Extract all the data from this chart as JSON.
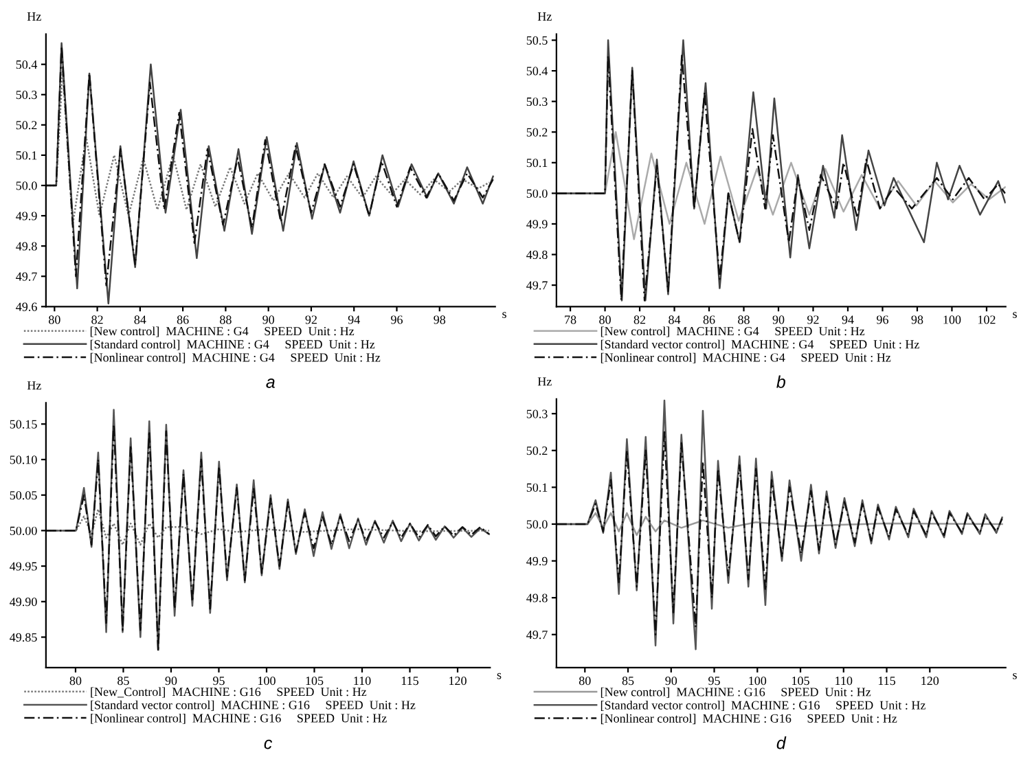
{
  "chart_data": [
    {
      "type": "line",
      "title": "a",
      "ylabel": "Hz",
      "xlabel": "s",
      "xlim": [
        79.6,
        100.6
      ],
      "ylim": [
        49.6,
        50.5
      ],
      "xticks": [
        80,
        82,
        84,
        86,
        88,
        90,
        92,
        94,
        96,
        98
      ],
      "yticks": [
        49.6,
        49.7,
        49.8,
        49.9,
        {
          "value": 50.0,
          "label": "50.0"
        },
        50.1,
        50.2,
        50.3,
        50.4
      ],
      "legend": "bottom",
      "grid": false,
      "series": [
        {
          "name": "[New control]  MACHINE : G4     SPEED  Unit : Hz",
          "color": "#777777",
          "line_style": "dotted",
          "x": [
            79.6,
            80.08,
            80.38,
            80.85,
            81.48,
            82.1,
            82.79,
            83.46,
            84.15,
            84.81,
            85.54,
            86.17,
            86.83,
            87.52,
            88.21,
            88.88,
            89.5,
            90.23,
            90.96,
            91.69,
            92.31,
            93.04,
            93.67,
            94.4,
            95.02,
            95.75,
            96.38,
            97.1,
            97.73,
            98.46,
            99.08,
            99.81,
            100.33
          ],
          "values": [
            50.0,
            50.0,
            50.38,
            49.87,
            50.16,
            49.9,
            50.1,
            49.9,
            50.09,
            49.92,
            50.1,
            49.92,
            50.07,
            49.93,
            50.06,
            49.94,
            50.04,
            49.95,
            50.04,
            49.96,
            50.04,
            49.96,
            50.03,
            49.96,
            50.03,
            49.97,
            50.02,
            49.97,
            50.02,
            49.98,
            50.02,
            49.99,
            50.01
          ]
        },
        {
          "name": "[Standard control]  MACHINE : G4     SPEED  Unit : Hz",
          "color": "#444444",
          "line_style": "solid",
          "x": [
            79.6,
            80.08,
            80.33,
            81.06,
            81.63,
            82.52,
            83.08,
            83.77,
            84.5,
            85.19,
            85.9,
            86.65,
            87.21,
            87.94,
            88.6,
            89.23,
            89.92,
            90.69,
            91.33,
            92.04,
            92.63,
            93.35,
            93.98,
            94.71,
            95.33,
            96.06,
            96.69,
            97.42,
            97.94,
            98.67,
            99.29,
            100.02,
            100.5
          ],
          "values": [
            50.0,
            50.0,
            50.47,
            49.66,
            50.37,
            49.61,
            50.13,
            49.73,
            50.4,
            49.91,
            50.25,
            49.76,
            50.13,
            49.85,
            50.12,
            49.84,
            50.16,
            49.85,
            50.14,
            49.89,
            50.07,
            49.91,
            50.08,
            49.9,
            50.1,
            49.93,
            50.07,
            49.96,
            50.04,
            49.94,
            50.06,
            49.94,
            50.03
          ]
        },
        {
          "name": "[Nonlinear control]  MACHINE : G4     SPEED  Unit : Hz",
          "color": "#111111",
          "line_style": "dashed",
          "x": [
            79.6,
            80.08,
            80.33,
            81.0,
            81.63,
            82.42,
            83.08,
            83.77,
            84.46,
            85.13,
            85.83,
            86.54,
            87.15,
            87.88,
            88.56,
            89.23,
            89.85,
            90.58,
            91.27,
            92.0,
            92.63,
            93.35,
            93.98,
            94.71,
            95.29,
            96.0,
            96.63,
            97.38,
            97.94,
            98.67,
            99.29,
            100.02,
            100.5
          ],
          "values": [
            50.0,
            50.0,
            50.46,
            49.7,
            50.37,
            49.67,
            50.12,
            49.74,
            50.34,
            49.92,
            50.24,
            49.81,
            50.12,
            49.87,
            50.09,
            49.86,
            50.15,
            49.88,
            50.13,
            49.91,
            50.07,
            49.93,
            50.07,
            49.9,
            50.08,
            49.93,
            50.06,
            49.96,
            50.04,
            49.95,
            50.04,
            49.96,
            50.02
          ]
        }
      ]
    },
    {
      "type": "line",
      "title": "b",
      "ylabel": "Hz",
      "xlabel": "s",
      "xlim": [
        77.2,
        103.1
      ],
      "ylim": [
        49.63,
        50.52
      ],
      "xticks": [
        78,
        80,
        82,
        84,
        86,
        88,
        90,
        92,
        94,
        96,
        98,
        100,
        102
      ],
      "yticks": [
        49.7,
        49.8,
        49.9,
        {
          "value": 50.0,
          "label": "50.0"
        },
        50.1,
        50.2,
        50.3,
        50.4,
        50.5
      ],
      "legend": "bottom",
      "grid": false,
      "series": [
        {
          "name": "[New control]  MACHINE : G4     SPEED  Unit : Hz",
          "color": "#aaaaaa",
          "line_style": "solid",
          "x": [
            77.2,
            80.0,
            80.62,
            81.67,
            82.67,
            83.72,
            84.69,
            85.74,
            86.66,
            87.71,
            88.76,
            89.68,
            90.73,
            91.78,
            92.7,
            93.75,
            94.8,
            95.85,
            96.9,
            97.95,
            99.0,
            100.05,
            101.1,
            102.15,
            103.07
          ],
          "values": [
            50.0,
            50.0,
            50.2,
            49.85,
            50.13,
            49.9,
            50.1,
            49.9,
            50.12,
            49.91,
            50.08,
            49.93,
            50.1,
            49.93,
            50.08,
            49.94,
            50.06,
            49.95,
            50.04,
            49.96,
            50.04,
            49.97,
            50.03,
            49.98,
            50.02
          ]
        },
        {
          "name": "[Standard vector control]  MACHINE : G4     SPEED  Unit : Hz",
          "color": "#444444",
          "line_style": "solid",
          "x": [
            77.2,
            80.0,
            80.18,
            80.97,
            81.57,
            82.33,
            82.99,
            83.64,
            84.51,
            85.14,
            85.8,
            86.61,
            87.11,
            87.76,
            88.55,
            89.29,
            89.76,
            90.68,
            91.12,
            91.78,
            92.57,
            93.22,
            93.67,
            94.48,
            95.19,
            96.11,
            96.64,
            98.39,
            99.13,
            99.78,
            100.44,
            101.62,
            102.67,
            103.07
          ],
          "values": [
            50.0,
            50.0,
            50.5,
            49.65,
            50.41,
            49.65,
            50.11,
            49.67,
            50.5,
            49.95,
            50.36,
            49.69,
            50.0,
            49.84,
            50.33,
            49.95,
            50.31,
            49.79,
            50.06,
            49.82,
            50.09,
            49.92,
            50.19,
            49.88,
            50.14,
            49.96,
            50.05,
            49.84,
            50.1,
            49.98,
            50.09,
            49.93,
            50.04,
            49.97
          ]
        },
        {
          "name": "[Nonlinear control]  MACHINE : G4     SPEED  Unit : Hz",
          "color": "#111111",
          "line_style": "dashed",
          "x": [
            77.2,
            80.0,
            80.18,
            80.94,
            81.57,
            82.28,
            82.99,
            83.64,
            84.43,
            85.14,
            85.74,
            86.61,
            87.11,
            87.76,
            88.5,
            89.23,
            89.68,
            90.6,
            91.12,
            91.78,
            92.44,
            93.35,
            93.75,
            94.54,
            95.06,
            95.85,
            96.64,
            97.69,
            99.13,
            100.05,
            100.97,
            101.88,
            102.67,
            103.07
          ],
          "values": [
            50.0,
            50.0,
            50.45,
            49.65,
            50.4,
            49.65,
            50.09,
            49.68,
            50.45,
            49.95,
            50.33,
            49.72,
            50.0,
            49.84,
            50.21,
            49.95,
            50.19,
            49.84,
            50.05,
            49.88,
            50.06,
            49.95,
            50.1,
            49.92,
            50.11,
            49.95,
            50.02,
            49.95,
            50.05,
            49.98,
            50.05,
            49.98,
            50.03,
            50.0
          ]
        }
      ]
    },
    {
      "type": "line",
      "title": "c",
      "ylabel": "Hz",
      "xlabel": "s",
      "xlim": [
        76.9,
        123.4
      ],
      "ylim": [
        49.807,
        50.18
      ],
      "xticks": [
        80,
        85,
        90,
        95,
        100,
        105,
        110,
        115,
        120
      ],
      "yticks": [
        {
          "value": 49.85,
          "label": "49.85"
        },
        {
          "value": 49.9,
          "label": "49.90"
        },
        {
          "value": 49.95,
          "label": "49.95"
        },
        {
          "value": 50.0,
          "label": "50.00"
        },
        {
          "value": 50.05,
          "label": "50.05"
        },
        {
          "value": 50.1,
          "label": "50.10"
        },
        {
          "value": 50.15,
          "label": "50.15"
        }
      ],
      "legend": "bottom",
      "grid": false,
      "series": [
        {
          "name": "[New_Control]  MACHINE : G16     SPEED  Unit : Hz",
          "color": "#777777",
          "line_style": "dotted",
          "x": [
            76.9,
            80.05,
            80.88,
            81.67,
            82.37,
            83.21,
            84.0,
            84.93,
            85.77,
            86.79,
            87.72,
            88.65,
            89.49,
            91.3,
            93.16,
            95.02,
            96.88,
            100.0,
            103.7,
            109.3,
            115.8,
            123.3
          ],
          "values": [
            50.0,
            50.0,
            50.02,
            49.995,
            50.03,
            49.99,
            50.01,
            49.98,
            50.01,
            49.98,
            50.01,
            49.99,
            50.005,
            50.005,
            49.995,
            50.002,
            49.998,
            50.002,
            49.998,
            50.002,
            49.999,
            50.0
          ]
        },
        {
          "name": "[Standard vector control]  MACHINE : G16     SPEED  Unit : Hz",
          "color": "#555555",
          "line_style": "solid",
          "x": [
            76.9,
            80.05,
            80.88,
            81.67,
            82.37,
            83.21,
            84.0,
            84.93,
            85.77,
            86.79,
            87.72,
            88.65,
            89.49,
            90.37,
            91.3,
            92.23,
            93.16,
            94.09,
            95.02,
            95.86,
            96.88,
            97.72,
            98.65,
            99.49,
            100.42,
            101.35,
            102.23,
            103.07,
            104.0,
            104.93,
            105.86,
            106.79,
            107.72,
            108.65,
            109.58,
            110.42,
            111.35,
            112.28,
            113.21,
            114.09,
            115.02,
            115.95,
            116.88,
            117.72,
            118.65,
            119.58,
            120.51,
            121.44,
            122.37,
            123.3
          ],
          "values": [
            50.0,
            50.0,
            50.06,
            49.977,
            50.11,
            49.857,
            50.17,
            49.857,
            50.13,
            49.85,
            50.154,
            49.832,
            50.149,
            49.88,
            50.085,
            49.894,
            50.11,
            49.884,
            50.097,
            49.93,
            50.065,
            49.927,
            50.071,
            49.937,
            50.05,
            49.946,
            50.044,
            49.967,
            50.03,
            49.964,
            50.026,
            49.974,
            50.023,
            49.975,
            50.017,
            49.98,
            50.014,
            49.983,
            50.014,
            49.985,
            50.01,
            49.986,
            50.007,
            49.987,
            50.006,
            49.99,
            50.004,
            49.991,
            50.003,
            49.995
          ]
        },
        {
          "name": "[Nonlinear control]  MACHINE : G16     SPEED  Unit : Hz",
          "color": "#111111",
          "line_style": "dashed",
          "x": [
            76.9,
            80.05,
            80.88,
            81.67,
            82.37,
            83.21,
            84.0,
            84.93,
            85.77,
            86.79,
            87.72,
            88.65,
            89.49,
            90.37,
            91.3,
            92.23,
            93.16,
            94.09,
            95.02,
            95.86,
            96.88,
            97.72,
            98.65,
            99.49,
            100.42,
            101.35,
            102.23,
            103.07,
            104.0,
            104.93,
            105.86,
            106.79,
            107.72,
            108.65,
            109.58,
            110.42,
            111.35,
            112.28,
            113.21,
            114.09,
            115.02,
            115.95,
            116.88,
            117.72,
            118.65,
            119.58,
            120.51,
            121.44,
            122.37,
            123.3
          ],
          "values": [
            50.0,
            50.0,
            50.05,
            49.98,
            50.1,
            49.87,
            50.15,
            49.86,
            50.12,
            49.86,
            50.14,
            49.83,
            50.14,
            49.89,
            50.08,
            49.9,
            50.1,
            49.89,
            50.09,
            49.935,
            50.06,
            49.93,
            50.06,
            49.94,
            50.045,
            49.95,
            50.04,
            49.97,
            50.025,
            49.975,
            50.02,
            49.98,
            50.02,
            49.985,
            50.015,
            49.985,
            50.012,
            49.99,
            50.012,
            49.99,
            50.01,
            49.99,
            50.008,
            49.992,
            50.006,
            49.993,
            50.005,
            49.994,
            50.005,
            49.995
          ]
        }
      ]
    },
    {
      "type": "line",
      "title": "d",
      "ylabel": "Hz",
      "xlabel": "s",
      "xlim": [
        76.7,
        128.8
      ],
      "ylim": [
        49.61,
        50.34
      ],
      "xticks": [
        80,
        85,
        90,
        95,
        100,
        105,
        110,
        115,
        120
      ],
      "yticks": [
        49.7,
        49.8,
        49.9,
        {
          "value": 50.0,
          "label": "50.0"
        },
        50.1,
        50.2,
        50.3
      ],
      "legend": "bottom",
      "grid": false,
      "series": [
        {
          "name": "[New control]  MACHINE : G16     SPEED  Unit : Hz",
          "color": "#999999",
          "line_style": "solid",
          "x": [
            76.7,
            80.31,
            81.24,
            82.12,
            83.01,
            83.94,
            84.87,
            86.01,
            87.05,
            88.19,
            89.22,
            91.19,
            93.68,
            96.63,
            99.84,
            105.08,
            115.28,
            128.39
          ],
          "values": [
            50.0,
            50.0,
            50.03,
            49.99,
            50.03,
            49.98,
            50.03,
            49.97,
            50.02,
            49.98,
            50.01,
            49.99,
            50.01,
            49.99,
            50.005,
            49.995,
            50.002,
            50.0
          ]
        },
        {
          "name": "[Standard vector control]  MACHINE : G16     SPEED  Unit : Hz",
          "color": "#555555",
          "line_style": "solid",
          "x": [
            76.7,
            80.31,
            81.24,
            82.12,
            83.01,
            83.94,
            84.87,
            86.01,
            87.05,
            88.19,
            89.22,
            90.26,
            91.19,
            92.85,
            93.68,
            94.72,
            95.44,
            96.63,
            97.93,
            98.96,
            99.84,
            100.93,
            101.66,
            102.85,
            103.73,
            105.08,
            106.22,
            107.15,
            108.03,
            109.07,
            110.1,
            111.3,
            112.18,
            113.21,
            113.99,
            115.28,
            116.06,
            117.51,
            118.13,
            119.59,
            120.21,
            121.66,
            122.28,
            123.73,
            124.35,
            125.8,
            126.42,
            127.72,
            128.39
          ],
          "values": [
            50.0,
            50.0,
            50.065,
            49.976,
            50.14,
            49.81,
            50.231,
            49.82,
            50.237,
            49.67,
            50.336,
            49.73,
            50.243,
            49.66,
            50.308,
            49.77,
            50.172,
            49.84,
            50.184,
            49.83,
            50.178,
            49.78,
            50.142,
            49.9,
            50.119,
            49.9,
            50.107,
            49.92,
            50.089,
            49.935,
            50.071,
            49.94,
            50.065,
            49.947,
            50.053,
            49.958,
            50.047,
            49.964,
            50.042,
            49.964,
            50.036,
            49.964,
            50.036,
            49.973,
            50.03,
            49.973,
            50.027,
            49.976,
            50.018
          ]
        },
        {
          "name": "[Nonlinear control]  MACHINE : G16     SPEED  Unit : Hz",
          "color": "#111111",
          "line_style": "dashed",
          "x": [
            76.7,
            80.31,
            81.24,
            82.12,
            83.01,
            83.94,
            84.87,
            86.01,
            87.05,
            88.19,
            89.22,
            90.26,
            91.19,
            92.85,
            93.68,
            94.72,
            95.44,
            96.63,
            97.93,
            98.96,
            99.84,
            100.93,
            101.66,
            102.85,
            103.73,
            105.08,
            106.22,
            107.15,
            108.03,
            109.07,
            110.1,
            111.3,
            112.18,
            113.21,
            113.99,
            115.28,
            116.06,
            117.51,
            118.13,
            119.59,
            120.21,
            121.66,
            122.28,
            123.73,
            124.35,
            125.8,
            126.42,
            127.72,
            128.39
          ],
          "values": [
            50.0,
            50.0,
            50.055,
            49.98,
            50.12,
            49.84,
            50.2,
            49.83,
            50.2,
            49.7,
            50.25,
            49.76,
            50.22,
            49.72,
            50.17,
            49.8,
            50.15,
            49.86,
            50.16,
            49.85,
            50.15,
            49.82,
            50.12,
            49.91,
            50.1,
            49.92,
            50.09,
            49.93,
            50.075,
            49.945,
            50.06,
            49.95,
            50.055,
            49.955,
            50.045,
            49.965,
            50.04,
            49.97,
            50.035,
            49.97,
            50.03,
            49.97,
            50.03,
            49.977,
            50.025,
            49.977,
            50.022,
            49.98,
            50.015
          ]
        }
      ]
    }
  ]
}
